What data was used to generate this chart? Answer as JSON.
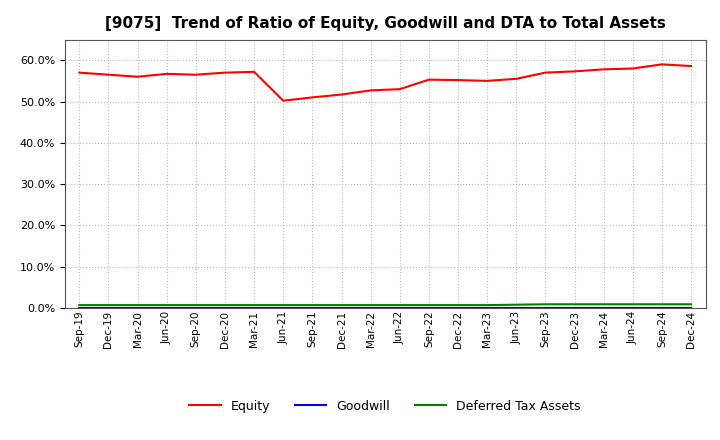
{
  "title": "[9075]  Trend of Ratio of Equity, Goodwill and DTA to Total Assets",
  "x_labels": [
    "Sep-19",
    "Dec-19",
    "Mar-20",
    "Jun-20",
    "Sep-20",
    "Dec-20",
    "Mar-21",
    "Jun-21",
    "Sep-21",
    "Dec-21",
    "Mar-22",
    "Jun-22",
    "Sep-22",
    "Dec-22",
    "Mar-23",
    "Jun-23",
    "Sep-23",
    "Dec-23",
    "Mar-24",
    "Jun-24",
    "Sep-24",
    "Dec-24"
  ],
  "equity": [
    0.57,
    0.565,
    0.56,
    0.567,
    0.565,
    0.57,
    0.572,
    0.502,
    0.51,
    0.517,
    0.527,
    0.53,
    0.553,
    0.552,
    0.55,
    0.555,
    0.57,
    0.573,
    0.578,
    0.58,
    0.59,
    0.586
  ],
  "goodwill": [
    0.0,
    0.0,
    0.0,
    0.0,
    0.0,
    0.0,
    0.0,
    0.0,
    0.0,
    0.0,
    0.0,
    0.0,
    0.0,
    0.0,
    0.0,
    0.0,
    0.0,
    0.0,
    0.0,
    0.0,
    0.0,
    0.0
  ],
  "dta": [
    0.007,
    0.007,
    0.007,
    0.007,
    0.007,
    0.007,
    0.007,
    0.007,
    0.007,
    0.007,
    0.007,
    0.007,
    0.007,
    0.007,
    0.007,
    0.008,
    0.009,
    0.009,
    0.009,
    0.009,
    0.009,
    0.009
  ],
  "equity_color": "#ff0000",
  "goodwill_color": "#0000ff",
  "dta_color": "#008000",
  "ylim": [
    0.0,
    0.65
  ],
  "yticks": [
    0.0,
    0.1,
    0.2,
    0.3,
    0.4,
    0.5,
    0.6
  ],
  "background_color": "#ffffff",
  "grid_color": "#bbbbbb",
  "title_fontsize": 11,
  "legend_labels": [
    "Equity",
    "Goodwill",
    "Deferred Tax Assets"
  ]
}
